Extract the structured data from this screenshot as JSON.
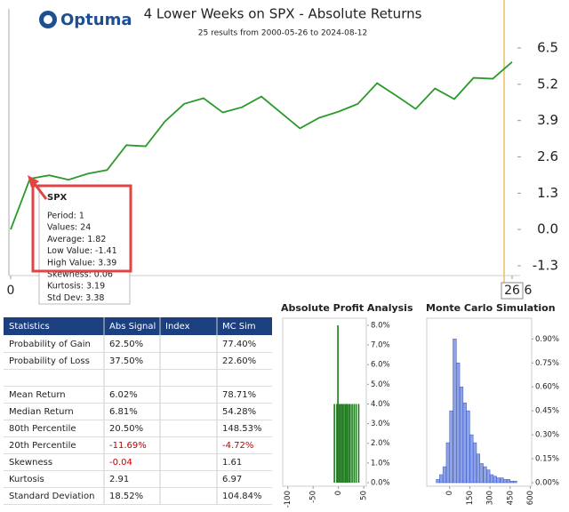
{
  "logo": "Optuma",
  "chart_data": [
    {
      "type": "line",
      "title": "4 Lower Weeks on SPX - Absolute Returns",
      "subtitle": "25 results from 2000-05-26 to 2024-08-12",
      "x": [
        0,
        1,
        2,
        3,
        4,
        5,
        6,
        7,
        8,
        9,
        10,
        11,
        12,
        13,
        14,
        15,
        16,
        17,
        18,
        19,
        20,
        21,
        22,
        23,
        24,
        25,
        26
      ],
      "series": [
        {
          "name": "SPX",
          "color": "#2a9a2a",
          "values": [
            0,
            1.82,
            1.94,
            1.78,
            2.0,
            2.13,
            3.02,
            2.98,
            3.87,
            4.5,
            4.7,
            4.19,
            4.38,
            4.76,
            4.19,
            3.62,
            4.0,
            4.22,
            4.5,
            5.24,
            4.79,
            4.32,
            5.05,
            4.67,
            5.43,
            5.4,
            6.0
          ]
        }
      ],
      "xlim": [
        0,
        26
      ],
      "xticks": [
        0,
        26
      ],
      "x_end_label": "6",
      "ylim": [
        -1.65,
        7.9
      ],
      "yticks": [
        -1.3,
        {
          "value": 0,
          "label": "0.0"
        },
        1.3,
        2.6,
        3.9,
        5.2,
        6.5
      ],
      "tooltip": {
        "lines": [
          "Period: 1",
          "Values: 24",
          "Average: 1.82",
          "Low Value: -1.41",
          "High Value: 3.39",
          "Skewness: 0.06",
          "Kurtosis: 3.19",
          "Std Dev: 3.38"
        ]
      }
    },
    {
      "type": "spikes",
      "title": "Absolute Profit Analysis",
      "color": "#1a7a1a",
      "x": [
        -8,
        -3,
        -1,
        2,
        5,
        8,
        11,
        14,
        17,
        20,
        23,
        27,
        31,
        35,
        40
      ],
      "values": [
        4,
        4,
        8,
        4,
        4,
        4,
        4,
        4,
        4,
        4,
        4,
        4,
        4,
        4,
        4
      ],
      "xlim": [
        -110,
        55
      ],
      "xticks": [
        -100,
        -50,
        0,
        50
      ],
      "ylim": [
        0,
        8.36
      ],
      "yticks": [
        {
          "value": 0,
          "label": "0.0%"
        },
        {
          "value": 1,
          "label": "1.0%"
        },
        {
          "value": 2,
          "label": "2.0%"
        },
        {
          "value": 3,
          "label": "3.0%"
        },
        {
          "value": 4,
          "label": "4.0%"
        },
        {
          "value": 5,
          "label": "5.0%"
        },
        {
          "value": 6,
          "label": "6.0%"
        },
        {
          "value": 7,
          "label": "7.0%"
        },
        {
          "value": 8,
          "label": "8.0%"
        }
      ]
    },
    {
      "type": "histogram",
      "title": "Monte Carlo Simulation",
      "color": "#3355cc",
      "bins": [
        -100,
        -75,
        -50,
        -25,
        0,
        25,
        50,
        75,
        100,
        125,
        150,
        175,
        200,
        225,
        250,
        275,
        300,
        325,
        350,
        375,
        400,
        425,
        450,
        475,
        500
      ],
      "values": [
        0.02,
        0.05,
        0.1,
        0.25,
        0.45,
        0.9,
        0.75,
        0.6,
        0.5,
        0.45,
        0.3,
        0.25,
        0.18,
        0.12,
        0.1,
        0.08,
        0.05,
        0.04,
        0.03,
        0.03,
        0.02,
        0.02,
        0.01,
        0.01
      ],
      "xlim": [
        -170,
        610
      ],
      "xticks": [
        0,
        150,
        300,
        450,
        600
      ],
      "ylim": [
        0,
        1.03
      ],
      "yticks": [
        {
          "value": 0,
          "label": "0.00%"
        },
        {
          "value": 0.15,
          "label": "0.15%"
        },
        {
          "value": 0.3,
          "label": "0.30%"
        },
        {
          "value": 0.45,
          "label": "0.45%"
        },
        {
          "value": 0.6,
          "label": "0.60%"
        },
        {
          "value": 0.75,
          "label": "0.75%"
        },
        {
          "value": 0.9,
          "label": "0.90%"
        }
      ]
    }
  ],
  "table": {
    "header": [
      "Statistics",
      "Abs Signal",
      "Index",
      "MC Sim"
    ],
    "rows": [
      [
        "Probability of Gain",
        "62.50%",
        null,
        "77.40%"
      ],
      [
        "Probability of Loss",
        "37.50%",
        null,
        "22.60%"
      ],
      [
        null,
        null,
        null,
        null
      ],
      [
        "Mean Return",
        "6.02%",
        null,
        "78.71%"
      ],
      [
        "Median Return",
        "6.81%",
        null,
        "54.28%"
      ],
      [
        "80th Percentile",
        "20.50%",
        null,
        "148.53%"
      ],
      [
        "20th Percentile",
        "-11.69%",
        null,
        "-4.72%"
      ],
      [
        "Skewness",
        "-0.04",
        null,
        "1.61"
      ],
      [
        "Kurtosis",
        "2.91",
        null,
        "6.97"
      ],
      [
        "Standard Deviation",
        "18.52%",
        null,
        "104.84%"
      ]
    ]
  }
}
